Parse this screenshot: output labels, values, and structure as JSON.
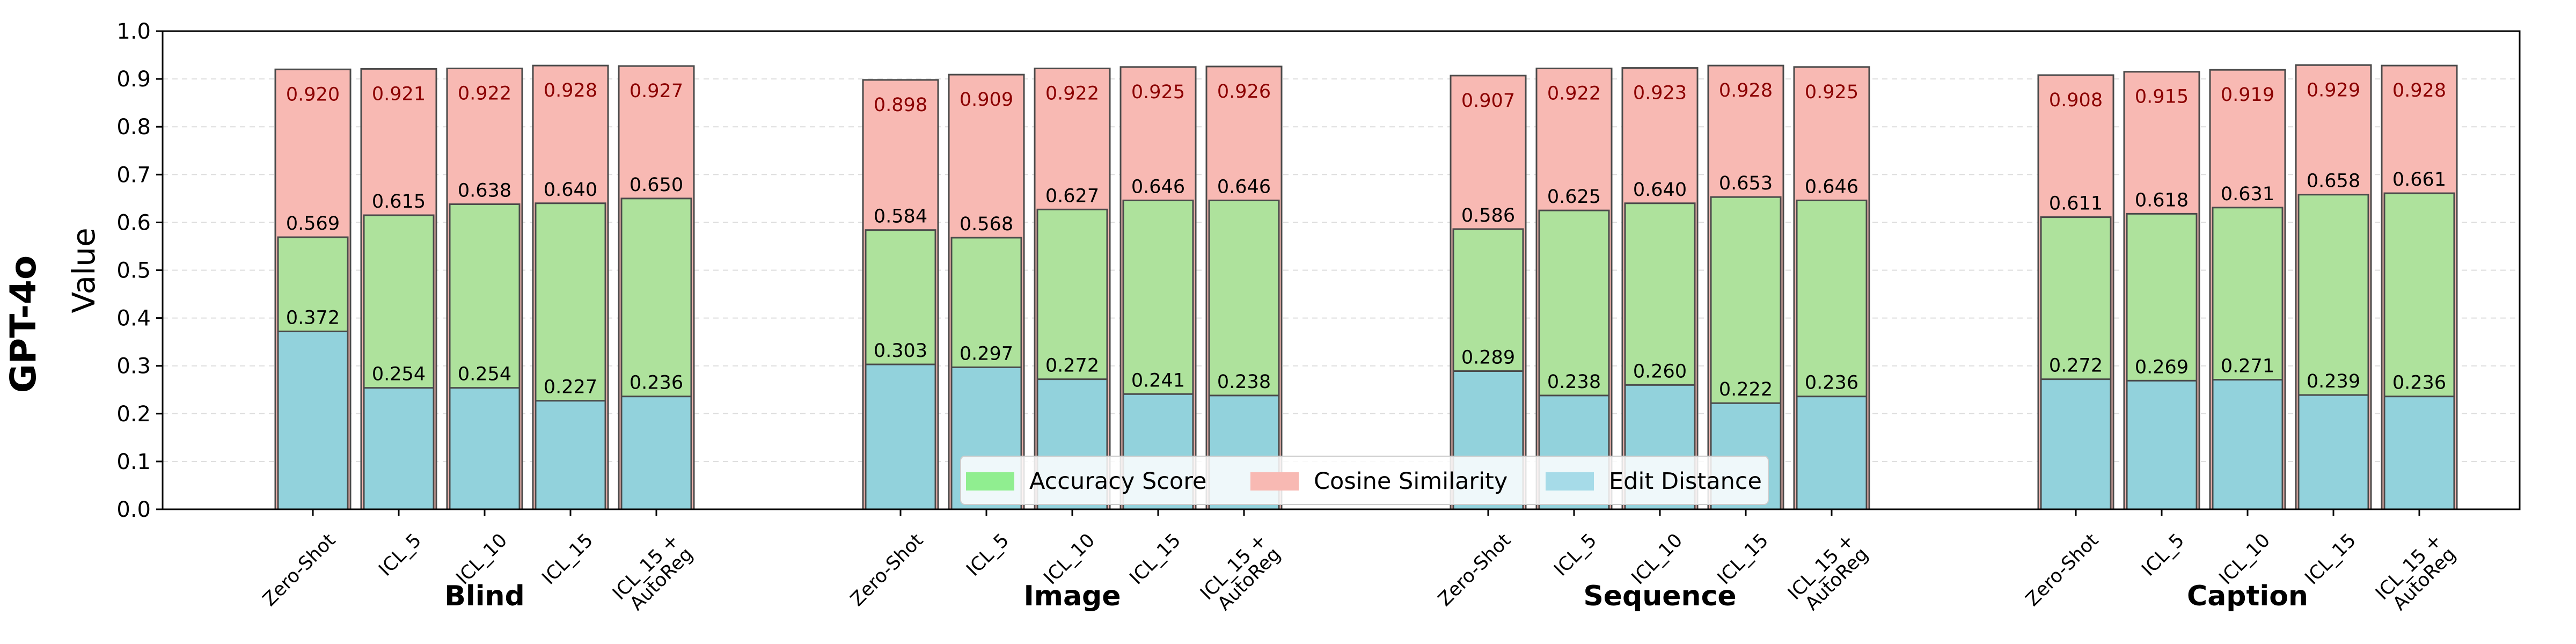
{
  "chart_data": {
    "type": "bar",
    "row_label": "GPT-4o",
    "ylabel": "Value",
    "ylim": [
      0.0,
      1.0
    ],
    "y_ticks": [
      "0.0",
      "0.1",
      "0.2",
      "0.3",
      "0.4",
      "0.5",
      "0.6",
      "0.7",
      "0.8",
      "0.9",
      "1.0"
    ],
    "grid": true,
    "legend_position": "bottom-center",
    "groups": [
      "Blind",
      "Image",
      "Sequence",
      "Caption"
    ],
    "categories": [
      [
        "Zero-Shot"
      ],
      [
        "ICL_5"
      ],
      [
        "ICL_10"
      ],
      [
        "ICL_15"
      ],
      [
        "ICL_15 +",
        "AutoReg"
      ]
    ],
    "series": [
      {
        "name": "Cosine Similarity",
        "color": "#f8b9b3",
        "label_color": "#8b0000",
        "values": [
          [
            0.92,
            0.921,
            0.922,
            0.928,
            0.927
          ],
          [
            0.898,
            0.909,
            0.922,
            0.925,
            0.926
          ],
          [
            0.907,
            0.922,
            0.923,
            0.928,
            0.925
          ],
          [
            0.908,
            0.915,
            0.919,
            0.929,
            0.928
          ]
        ]
      },
      {
        "name": "Accuracy Score",
        "color": "#aee29c",
        "label_color": "#000000",
        "values": [
          [
            0.569,
            0.615,
            0.638,
            0.64,
            0.65
          ],
          [
            0.584,
            0.568,
            0.627,
            0.646,
            0.646
          ],
          [
            0.586,
            0.625,
            0.64,
            0.653,
            0.646
          ],
          [
            0.611,
            0.618,
            0.631,
            0.658,
            0.661
          ]
        ]
      },
      {
        "name": "Edit Distance",
        "color": "#92d2dc",
        "label_color": "#000000",
        "values": [
          [
            0.372,
            0.254,
            0.254,
            0.227,
            0.236
          ],
          [
            0.303,
            0.297,
            0.272,
            0.241,
            0.238
          ],
          [
            0.289,
            0.238,
            0.26,
            0.222,
            0.236
          ],
          [
            0.272,
            0.269,
            0.271,
            0.239,
            0.236
          ]
        ]
      }
    ],
    "legend": [
      {
        "name": "Accuracy Score",
        "color": "#90ee90"
      },
      {
        "name": "Cosine Similarity",
        "color": "#f8b9b3"
      },
      {
        "name": "Edit Distance",
        "color": "#a6dbe8"
      }
    ]
  }
}
